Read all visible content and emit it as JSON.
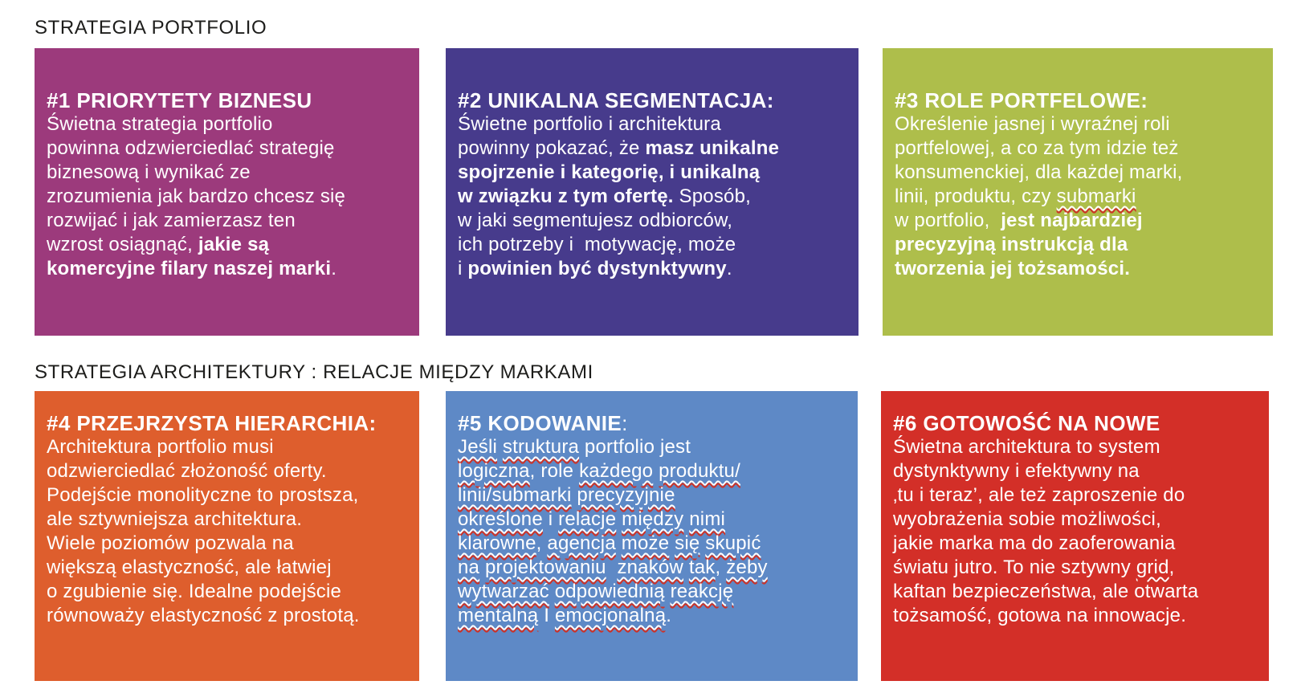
{
  "sections": [
    {
      "header": "STRATEGIA PORTFOLIO"
    },
    {
      "header": "STRATEGIA ARCHITEKTURY : RELACJE MIĘDZY MARKAMI"
    }
  ],
  "colors": {
    "header_text": "#1d1d1b",
    "card_text": "#ffffff",
    "squiggle_top": "#ffffff",
    "squiggle_bottom": "#cd3227",
    "card_1": "#9c3a7c",
    "card_2": "#473b8c",
    "card_3": "#aebe4b",
    "card_4": "#de5e2d",
    "card_5": "#5e89c6",
    "card_6": "#d32f28"
  },
  "boxes": [
    {
      "name": "card-1-priorytety-biznesu",
      "bg": "#9c3a7c",
      "title": [
        {
          "t": "#1 PRIORYTETY BIZNESU",
          "b": true
        }
      ],
      "lines": [
        [
          {
            "t": "Świetna strategia portfolio"
          }
        ],
        [
          {
            "t": "powinna odzwierciedlać strategię"
          }
        ],
        [
          {
            "t": "biznesową i wynikać ze"
          }
        ],
        [
          {
            "t": "zrozumienia jak bardzo chcesz się"
          }
        ],
        [
          {
            "t": "rozwijać i jak zamierzasz ten"
          }
        ],
        [
          {
            "t": "wzrost osiągnąć, "
          },
          {
            "t": "jakie są",
            "b": true
          }
        ],
        [
          {
            "t": "komercyjne filary naszej marki",
            "b": true
          },
          {
            "t": "."
          }
        ]
      ]
    },
    {
      "name": "card-2-unikalna-segmentacja",
      "bg": "#473b8c",
      "title": [
        {
          "t": "#2 UNIKALNA SEGMENTACJA:",
          "b": true
        }
      ],
      "lines": [
        [
          {
            "t": "Świetne portfolio i architektura"
          }
        ],
        [
          {
            "t": "powinny pokazać, że "
          },
          {
            "t": "masz unikalne",
            "b": true
          }
        ],
        [
          {
            "t": "spojrzenie i kategorię, i unikalną",
            "b": true
          }
        ],
        [
          {
            "t": "w związku z tym ofertę.",
            "b": true
          },
          {
            "t": " Sposób,"
          }
        ],
        [
          {
            "t": "w jaki segmentujesz odbiorców,"
          }
        ],
        [
          {
            "t": "ich potrzeby i  motywację, może"
          }
        ],
        [
          {
            "t": "i "
          },
          {
            "t": "powinien być dystynktywny",
            "b": true
          },
          {
            "t": "."
          }
        ]
      ]
    },
    {
      "name": "card-3-role-portfelowe",
      "bg": "#aebe4b",
      "title": [
        {
          "t": "#3 ROLE PORTFELOWE:",
          "b": true
        }
      ],
      "lines": [
        [
          {
            "t": "Określenie jasnej i wyraźnej roli"
          }
        ],
        [
          {
            "t": "portfelowej, a co za tym idzie też"
          }
        ],
        [
          {
            "t": "konsumenckiej, dla każdej marki,"
          }
        ],
        [
          {
            "t": "linii, produktu, czy "
          },
          {
            "t": "submarki",
            "sq": true
          }
        ],
        [
          {
            "t": "w portfolio,  "
          },
          {
            "t": "jest najbardziej",
            "b": true
          }
        ],
        [
          {
            "t": "precyzyjną instrukcją dla",
            "b": true
          }
        ],
        [
          {
            "t": "tworzenia jej tożsamości.",
            "b": true
          }
        ]
      ]
    },
    {
      "name": "card-4-przejrzysta-hierarchia",
      "bg": "#de5e2d",
      "title": [
        {
          "t": "#4 PRZEJRZYSTA HIERARCHIA:",
          "b": true
        }
      ],
      "lines": [
        [
          {
            "t": "Architektura portfolio musi"
          }
        ],
        [
          {
            "t": "odzwierciedlać złożoność oferty."
          }
        ],
        [
          {
            "t": "Podejście monolityczne to prostsza,"
          }
        ],
        [
          {
            "t": "ale sztywniejsza architektura."
          }
        ],
        [
          {
            "t": "Wiele poziomów pozwala na"
          }
        ],
        [
          {
            "t": "większą elastyczność, ale łatwiej"
          }
        ],
        [
          {
            "t": "o zgubienie się. Idealne podejście"
          }
        ],
        [
          {
            "t": "równoważy elastyczność z prostotą."
          }
        ]
      ]
    },
    {
      "name": "card-5-kodowanie",
      "bg": "#5e89c6",
      "title": [
        {
          "t": "#5 KODOWANIE",
          "b": true
        },
        {
          "t": ":"
        }
      ],
      "lines": [
        [
          {
            "t": "Jeśli",
            "sq": true
          },
          {
            "t": " "
          },
          {
            "t": "struktura",
            "sq": true
          },
          {
            "t": " portfolio jest"
          }
        ],
        [
          {
            "t": "logiczna",
            "sq": true
          },
          {
            "t": ", role "
          },
          {
            "t": "każdego",
            "sq": true
          },
          {
            "t": " "
          },
          {
            "t": "produktu/",
            "sq": true
          }
        ],
        [
          {
            "t": "linii/submarki",
            "sq": true
          },
          {
            "t": " "
          },
          {
            "t": "precyzyjnie",
            "sq": true
          }
        ],
        [
          {
            "t": "określone",
            "sq": true
          },
          {
            "t": " i "
          },
          {
            "t": "relacje",
            "sq": true
          },
          {
            "t": " "
          },
          {
            "t": "między",
            "sq": true
          },
          {
            "t": " "
          },
          {
            "t": "nimi",
            "sq": true
          }
        ],
        [
          {
            "t": "klarowne",
            "sq": true
          },
          {
            "t": ", "
          },
          {
            "t": "agencja",
            "sq": true
          },
          {
            "t": " "
          },
          {
            "t": "może",
            "sq": true
          },
          {
            "t": " "
          },
          {
            "t": "się",
            "sq": true
          },
          {
            "t": " "
          },
          {
            "t": "skupić",
            "sq": true
          }
        ],
        [
          {
            "t": "na",
            "sq": true
          },
          {
            "t": " "
          },
          {
            "t": "projektowaniu",
            "sq": true
          },
          {
            "t": "  "
          },
          {
            "t": "znaków",
            "sq": true
          },
          {
            "t": " "
          },
          {
            "t": "tak",
            "sq": true
          },
          {
            "t": ", "
          },
          {
            "t": "żeby",
            "sq": true
          }
        ],
        [
          {
            "t": "wytwarzać",
            "sq": true
          },
          {
            "t": " "
          },
          {
            "t": "odpowiednią",
            "sq": true
          },
          {
            "t": " "
          },
          {
            "t": "reakcję",
            "sq": true
          }
        ],
        [
          {
            "t": "mentalną",
            "sq": true
          },
          {
            "t": " I "
          },
          {
            "t": "emocjonalną",
            "sq": true
          },
          {
            "t": "."
          }
        ]
      ]
    },
    {
      "name": "card-6-gotowosc-na-nowe",
      "bg": "#d32f28",
      "title": [
        {
          "t": "#6 GOTOWOŚĆ NA NOWE",
          "b": true
        }
      ],
      "lines": [
        [
          {
            "t": "Świetna architektura to system"
          }
        ],
        [
          {
            "t": "dystynktywny i efektywny na"
          }
        ],
        [
          {
            "t": "‚tu i teraz’, ale też zaproszenie do"
          }
        ],
        [
          {
            "t": "wyobrażenia sobie możliwości,"
          }
        ],
        [
          {
            "t": "jakie marka ma do zaoferowania"
          }
        ],
        [
          {
            "t": "światu jutro. To nie sztywny "
          },
          {
            "t": "grid",
            "sq": true
          },
          {
            "t": ","
          }
        ],
        [
          {
            "t": "kaftan bezpieczeństwa, ale otwarta"
          }
        ],
        [
          {
            "t": "tożsamość, gotowa na innowacje."
          }
        ]
      ]
    }
  ]
}
